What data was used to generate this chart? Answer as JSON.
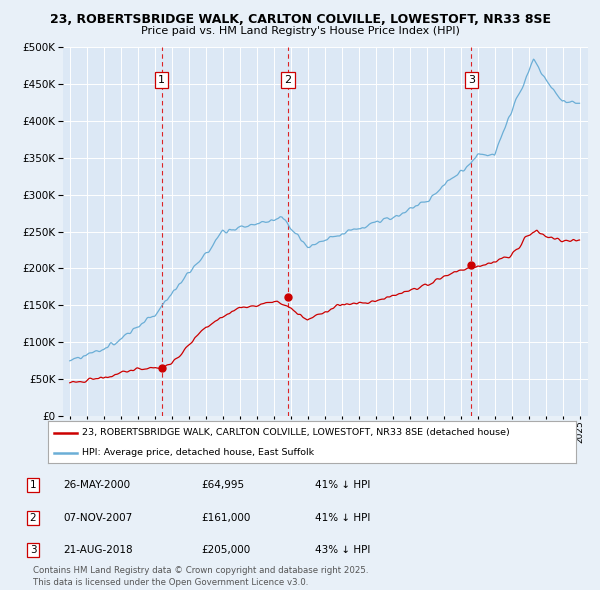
{
  "title_line1": "23, ROBERTSBRIDGE WALK, CARLTON COLVILLE, LOWESTOFT, NR33 8SE",
  "title_line2": "Price paid vs. HM Land Registry's House Price Index (HPI)",
  "background_color": "#e8f0f8",
  "plot_bg_color": "#dce8f5",
  "grid_color": "#ffffff",
  "sale_labels": [
    "1",
    "2",
    "3"
  ],
  "legend_line1": "23, ROBERTSBRIDGE WALK, CARLTON COLVILLE, LOWESTOFT, NR33 8SE (detached house)",
  "legend_line2": "HPI: Average price, detached house, East Suffolk",
  "table_data": [
    [
      "1",
      "26-MAY-2000",
      "£64,995",
      "41% ↓ HPI"
    ],
    [
      "2",
      "07-NOV-2007",
      "£161,000",
      "41% ↓ HPI"
    ],
    [
      "3",
      "21-AUG-2018",
      "£205,000",
      "43% ↓ HPI"
    ]
  ],
  "footer": "Contains HM Land Registry data © Crown copyright and database right 2025.\nThis data is licensed under the Open Government Licence v3.0.",
  "ylim": [
    0,
    500000
  ],
  "yticks": [
    0,
    50000,
    100000,
    150000,
    200000,
    250000,
    300000,
    350000,
    400000,
    450000,
    500000
  ],
  "hpi_color": "#6baed6",
  "price_color": "#cc0000",
  "vline_color": "#dd0000",
  "sale_decimal": [
    2000.4,
    2007.85,
    2018.64
  ],
  "sale_prices": [
    64995,
    161000,
    205000
  ]
}
